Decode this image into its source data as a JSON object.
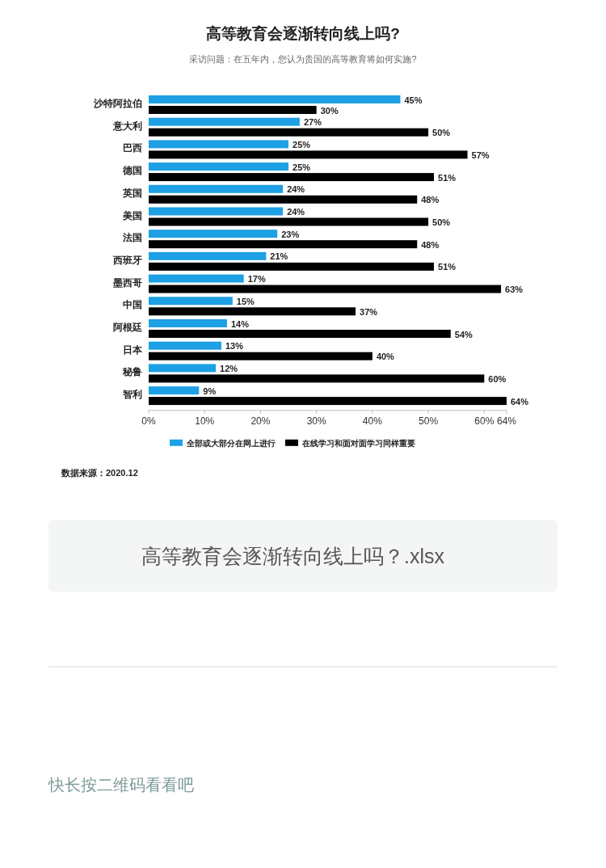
{
  "chart_data": {
    "type": "bar",
    "orientation": "horizontal",
    "title": "高等教育会逐渐转向线上吗?",
    "subtitle": "采访问题：在五年内，您认为贵国的高等教育将如何实施?",
    "categories": [
      "沙特阿拉伯",
      "意大利",
      "巴西",
      "德国",
      "英国",
      "美国",
      "法国",
      "西班牙",
      "墨西哥",
      "中国",
      "阿根廷",
      "日本",
      "秘鲁",
      "智利"
    ],
    "series": [
      {
        "name": "全部或大部分在网上进行",
        "color": "#1ea0e4",
        "values": [
          45,
          27,
          25,
          25,
          24,
          24,
          23,
          21,
          17,
          15,
          14,
          13,
          12,
          9
        ],
        "value_labels": [
          "45%",
          "27%",
          "25%",
          "25%",
          "24%",
          "24%",
          "23%",
          "21%",
          "17%",
          "15%",
          "14%",
          "13%",
          "12%",
          "9%"
        ]
      },
      {
        "name": "在线学习和面对面学习同样重要",
        "color": "#000000",
        "values": [
          30,
          50,
          57,
          51,
          48,
          50,
          48,
          51,
          63,
          37,
          54,
          40,
          60,
          64
        ],
        "value_labels": [
          "30%",
          "50%",
          "57%",
          "51%",
          "48%",
          "50%",
          "48%",
          "51%",
          "63%",
          "37%",
          "54%",
          "40%",
          "60%",
          "64%"
        ]
      }
    ],
    "xlim": [
      0,
      64
    ],
    "xticks": [
      {
        "value": 0,
        "label": "0%"
      },
      {
        "value": 10,
        "label": "10%"
      },
      {
        "value": 20,
        "label": "20%"
      },
      {
        "value": 30,
        "label": "30%"
      },
      {
        "value": 40,
        "label": "40%"
      },
      {
        "value": 50,
        "label": "50%"
      },
      {
        "value": 60,
        "label": "60%"
      },
      {
        "value": 64,
        "label": "64%"
      }
    ],
    "legend": "bottom",
    "annotations": [
      "数据来源：2020.12",
      "高等教育会逐渐转向线上吗？.xlsx",
      "快长按二维码看看吧"
    ]
  }
}
